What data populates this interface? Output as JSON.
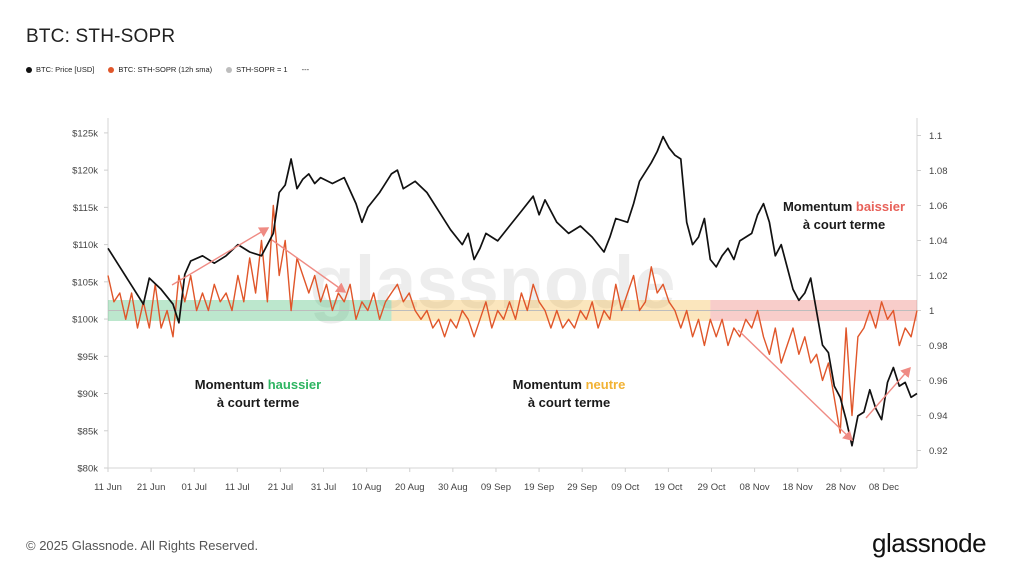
{
  "title": "BTC: STH-SOPR",
  "legend": [
    {
      "label": "BTC: Price [USD]",
      "color": "#111111"
    },
    {
      "label": "BTC: STH-SOPR (12h sma)",
      "color": "#e0562a"
    },
    {
      "label": "STH-SOPR = 1",
      "color": "#bdbdbd"
    },
    {
      "label": "---",
      "color": "#ffffff"
    }
  ],
  "footer": {
    "copyright": "© 2025 Glassnode. All Rights Reserved.",
    "brand": "glassnode"
  },
  "watermark": "glassnode",
  "annotations": [
    {
      "id": "bull",
      "line1_prefix": "Momentum ",
      "line1_word": "haussier",
      "line2": "à court terme",
      "color": "#2eb562"
    },
    {
      "id": "neutral",
      "line1_prefix": "Momentum ",
      "line1_word": "neutre",
      "line2": "à court terme",
      "color": "#f2b233"
    },
    {
      "id": "bear",
      "line1_prefix": "Momentum ",
      "line1_word": "baissier",
      "line2": "à court terme",
      "color": "#e8625a"
    }
  ],
  "chart_data": {
    "type": "line",
    "title": "BTC: STH-SOPR",
    "x_ticks": [
      "11 Jun",
      "21 Jun",
      "01 Jul",
      "11 Jul",
      "21 Jul",
      "31 Jul",
      "10 Aug",
      "20 Aug",
      "30 Aug",
      "09 Sep",
      "19 Sep",
      "29 Sep",
      "09 Oct",
      "19 Oct",
      "29 Oct",
      "08 Nov",
      "18 Nov",
      "28 Nov",
      "08 Dec"
    ],
    "y_left": {
      "label": "",
      "ticks": [
        "$80k",
        "$85k",
        "$90k",
        "$95k",
        "$100k",
        "$105k",
        "$110k",
        "$115k",
        "$120k",
        "$125k"
      ],
      "range": [
        80000,
        127000
      ]
    },
    "y_right": {
      "label": "",
      "ticks": [
        "0.92",
        "0.94",
        "0.96",
        "0.98",
        "1",
        "1.02",
        "1.04",
        "1.06",
        "1.08",
        "1.1"
      ],
      "range": [
        0.91,
        1.11
      ]
    },
    "series": [
      {
        "name": "BTC: Price [USD]",
        "axis": "left",
        "color": "#111111",
        "points": [
          [
            0,
            109500
          ],
          [
            2,
            107000
          ],
          [
            4,
            104500
          ],
          [
            6,
            102000
          ],
          [
            7,
            105500
          ],
          [
            9,
            104000
          ],
          [
            11,
            102000
          ],
          [
            12,
            99500
          ],
          [
            13,
            106000
          ],
          [
            14,
            107800
          ],
          [
            16,
            108500
          ],
          [
            18,
            107500
          ],
          [
            20,
            108500
          ],
          [
            22,
            110000
          ],
          [
            24,
            109000
          ],
          [
            26,
            108500
          ],
          [
            28,
            111500
          ],
          [
            29,
            117000
          ],
          [
            30,
            118000
          ],
          [
            31,
            121500
          ],
          [
            32,
            117500
          ],
          [
            33,
            118800
          ],
          [
            34,
            119500
          ],
          [
            35,
            118200
          ],
          [
            36,
            119000
          ],
          [
            38,
            118200
          ],
          [
            40,
            119000
          ],
          [
            42,
            115500
          ],
          [
            43,
            113000
          ],
          [
            44,
            115000
          ],
          [
            46,
            117000
          ],
          [
            48,
            119500
          ],
          [
            49,
            120000
          ],
          [
            50,
            117500
          ],
          [
            52,
            118500
          ],
          [
            54,
            117000
          ],
          [
            56,
            114500
          ],
          [
            58,
            112000
          ],
          [
            60,
            110000
          ],
          [
            61,
            111500
          ],
          [
            62,
            108000
          ],
          [
            63,
            109500
          ],
          [
            64,
            111500
          ],
          [
            66,
            110500
          ],
          [
            68,
            112500
          ],
          [
            70,
            114500
          ],
          [
            72,
            116500
          ],
          [
            73,
            114000
          ],
          [
            74,
            116000
          ],
          [
            76,
            113000
          ],
          [
            78,
            111500
          ],
          [
            80,
            112500
          ],
          [
            82,
            111000
          ],
          [
            84,
            109000
          ],
          [
            85,
            111000
          ],
          [
            86,
            113500
          ],
          [
            88,
            113000
          ],
          [
            89,
            115500
          ],
          [
            90,
            118500
          ],
          [
            92,
            121000
          ],
          [
            93,
            122500
          ],
          [
            94,
            124500
          ],
          [
            95,
            123000
          ],
          [
            96,
            122000
          ],
          [
            97,
            121500
          ],
          [
            98,
            113000
          ],
          [
            99,
            110000
          ],
          [
            100,
            111000
          ],
          [
            101,
            113500
          ],
          [
            102,
            108000
          ],
          [
            103,
            107000
          ],
          [
            104,
            108500
          ],
          [
            105,
            109500
          ],
          [
            106,
            108000
          ],
          [
            107,
            110500
          ],
          [
            109,
            111500
          ],
          [
            110,
            114000
          ],
          [
            111,
            115500
          ],
          [
            112,
            113000
          ],
          [
            113,
            108500
          ],
          [
            114,
            110000
          ],
          [
            115,
            107000
          ],
          [
            116,
            104000
          ],
          [
            117,
            102500
          ],
          [
            118,
            103500
          ],
          [
            119,
            105500
          ],
          [
            120,
            101000
          ],
          [
            121,
            96500
          ],
          [
            122,
            95500
          ],
          [
            123,
            91000
          ],
          [
            124,
            89500
          ],
          [
            125,
            86500
          ],
          [
            126,
            83000
          ],
          [
            127,
            87000
          ],
          [
            128,
            87500
          ],
          [
            129,
            90500
          ],
          [
            130,
            88000
          ],
          [
            131,
            86500
          ],
          [
            132,
            91500
          ],
          [
            133,
            93500
          ],
          [
            134,
            91000
          ],
          [
            135,
            91500
          ],
          [
            136,
            89500
          ],
          [
            137,
            90000
          ]
        ]
      },
      {
        "name": "BTC: STH-SOPR (12h sma)",
        "axis": "right",
        "color": "#e0562a",
        "points": [
          [
            0,
            1.02
          ],
          [
            1,
            1.005
          ],
          [
            2,
            1.01
          ],
          [
            3,
            0.995
          ],
          [
            4,
            1.01
          ],
          [
            5,
            0.99
          ],
          [
            6,
            1.005
          ],
          [
            7,
            0.99
          ],
          [
            8,
            1.015
          ],
          [
            9,
            0.99
          ],
          [
            10,
            1.0
          ],
          [
            11,
            0.985
          ],
          [
            12,
            1.02
          ],
          [
            13,
            1.005
          ],
          [
            14,
            1.02
          ],
          [
            15,
            1.0
          ],
          [
            16,
            1.01
          ],
          [
            17,
            1.0
          ],
          [
            18,
            1.015
          ],
          [
            19,
            1.005
          ],
          [
            20,
            1.01
          ],
          [
            21,
            1.0
          ],
          [
            22,
            1.02
          ],
          [
            23,
            1.005
          ],
          [
            24,
            1.03
          ],
          [
            25,
            1.01
          ],
          [
            26,
            1.04
          ],
          [
            27,
            1.005
          ],
          [
            28,
            1.06
          ],
          [
            29,
            1.02
          ],
          [
            30,
            1.04
          ],
          [
            31,
            1.0
          ],
          [
            32,
            1.03
          ],
          [
            33,
            1.02
          ],
          [
            34,
            1.01
          ],
          [
            35,
            1.02
          ],
          [
            36,
            1.005
          ],
          [
            37,
            1.015
          ],
          [
            38,
            1.0
          ],
          [
            39,
            1.01
          ],
          [
            40,
            1.005
          ],
          [
            41,
            1.015
          ],
          [
            42,
            0.995
          ],
          [
            43,
            1.005
          ],
          [
            44,
            1.0
          ],
          [
            45,
            1.01
          ],
          [
            46,
            0.995
          ],
          [
            47,
            1.005
          ],
          [
            48,
            1.01
          ],
          [
            49,
            1.015
          ],
          [
            50,
            1.005
          ],
          [
            51,
            1.01
          ],
          [
            52,
            1.0
          ],
          [
            53,
            0.995
          ],
          [
            54,
            1.0
          ],
          [
            55,
            0.99
          ],
          [
            56,
            0.995
          ],
          [
            57,
            0.985
          ],
          [
            58,
            0.995
          ],
          [
            59,
            0.99
          ],
          [
            60,
            1.0
          ],
          [
            61,
            0.995
          ],
          [
            62,
            0.985
          ],
          [
            63,
            0.995
          ],
          [
            64,
            1.005
          ],
          [
            65,
            0.99
          ],
          [
            66,
            1.0
          ],
          [
            67,
            0.995
          ],
          [
            68,
            1.005
          ],
          [
            69,
            0.995
          ],
          [
            70,
            1.01
          ],
          [
            71,
            1.0
          ],
          [
            72,
            1.015
          ],
          [
            73,
            1.005
          ],
          [
            74,
            1.0
          ],
          [
            75,
            0.99
          ],
          [
            76,
            1.0
          ],
          [
            77,
            0.99
          ],
          [
            78,
            0.995
          ],
          [
            79,
            0.99
          ],
          [
            80,
            1.0
          ],
          [
            81,
            0.995
          ],
          [
            82,
            1.005
          ],
          [
            83,
            0.99
          ],
          [
            84,
            1.0
          ],
          [
            85,
            0.995
          ],
          [
            86,
            1.015
          ],
          [
            87,
            1.0
          ],
          [
            88,
            1.01
          ],
          [
            89,
            1.02
          ],
          [
            90,
            1.0
          ],
          [
            91,
            1.005
          ],
          [
            92,
            1.025
          ],
          [
            93,
            1.01
          ],
          [
            94,
            1.015
          ],
          [
            95,
            1.005
          ],
          [
            96,
            1.0
          ],
          [
            97,
            0.99
          ],
          [
            98,
            1.0
          ],
          [
            99,
            0.985
          ],
          [
            100,
            0.995
          ],
          [
            101,
            0.98
          ],
          [
            102,
            0.995
          ],
          [
            103,
            0.985
          ],
          [
            104,
            0.995
          ],
          [
            105,
            0.98
          ],
          [
            106,
            0.99
          ],
          [
            107,
            0.985
          ],
          [
            108,
            0.995
          ],
          [
            109,
            0.99
          ],
          [
            110,
            1.0
          ],
          [
            111,
            0.985
          ],
          [
            112,
            0.975
          ],
          [
            113,
            0.99
          ],
          [
            114,
            0.97
          ],
          [
            115,
            0.98
          ],
          [
            116,
            0.99
          ],
          [
            117,
            0.975
          ],
          [
            118,
            0.985
          ],
          [
            119,
            0.97
          ],
          [
            120,
            0.975
          ],
          [
            121,
            0.96
          ],
          [
            122,
            0.97
          ],
          [
            123,
            0.95
          ],
          [
            124,
            0.93
          ],
          [
            125,
            0.99
          ],
          [
            126,
            0.94
          ],
          [
            127,
            0.985
          ],
          [
            128,
            0.99
          ],
          [
            129,
            1.0
          ],
          [
            130,
            0.99
          ],
          [
            131,
            1.005
          ],
          [
            132,
            0.995
          ],
          [
            133,
            1.0
          ],
          [
            134,
            0.98
          ],
          [
            135,
            0.99
          ],
          [
            136,
            0.985
          ],
          [
            137,
            1.0
          ]
        ]
      },
      {
        "name": "STH-SOPR = 1",
        "axis": "right",
        "color": "#bdbdbd",
        "value": 1.0
      }
    ],
    "zones": [
      {
        "name": "haussier",
        "from": 0,
        "to": 48,
        "color": "#2eb562"
      },
      {
        "name": "neutre",
        "from": 48,
        "to": 102,
        "color": "#f2b233"
      },
      {
        "name": "baissier",
        "from": 102,
        "to": 137,
        "color": "#e8625a"
      }
    ],
    "x_range": [
      0,
      137
    ]
  }
}
